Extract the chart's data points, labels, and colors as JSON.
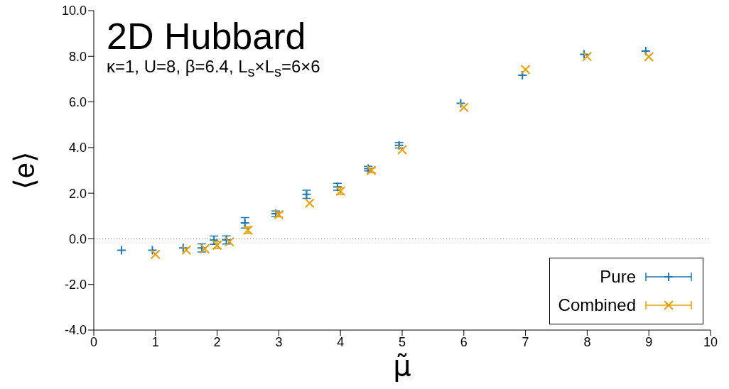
{
  "chart_data": {
    "type": "scatter",
    "title": "2D Hubbard",
    "subtitle": "κ=1, U=8, β=6.4, L$_{s}$×L$_{s}$=6×6",
    "xlabel": "μ̃",
    "ylabel": "⟨e⟩",
    "series": [
      {
        "name": "Pure",
        "color": "#1f77b4",
        "marker": "plus",
        "x": [
          0.45,
          0.95,
          1.45,
          1.75,
          1.95,
          2.15,
          2.45,
          2.95,
          3.45,
          3.95,
          4.45,
          4.95,
          5.95,
          6.95,
          7.95,
          8.95
        ],
        "values": [
          -0.5,
          -0.5,
          -0.4,
          -0.4,
          -0.06,
          -0.05,
          0.7,
          1.1,
          1.95,
          2.28,
          3.08,
          4.1,
          5.94,
          7.17,
          8.09,
          8.23
        ],
        "errors": [
          null,
          null,
          null,
          0.18,
          0.18,
          0.18,
          0.23,
          0.12,
          0.18,
          0.15,
          0.1,
          0.12,
          null,
          null,
          null,
          null
        ]
      },
      {
        "name": "Combined",
        "color": "#e69f00",
        "marker": "cross",
        "x": [
          1,
          1.5,
          1.8,
          2,
          2.2,
          2.5,
          3,
          3.5,
          4,
          4.5,
          5,
          6,
          7,
          8,
          9
        ],
        "values": [
          -0.68,
          -0.49,
          -0.44,
          -0.28,
          -0.13,
          0.38,
          1.06,
          1.56,
          2.09,
          3.0,
          3.9,
          5.76,
          7.42,
          7.99,
          7.98
        ],
        "errors": [
          null,
          null,
          null,
          0.15,
          null,
          0.15,
          0.1,
          null,
          0.15,
          0.1,
          null,
          null,
          null,
          null,
          null
        ]
      }
    ],
    "xlim": [
      0,
      10
    ],
    "xticks": [
      0,
      1,
      2,
      3,
      4,
      5,
      6,
      7,
      8,
      9,
      10
    ],
    "ylim": [
      -4,
      10
    ],
    "yticks": [
      {
        "value": -4,
        "label": "-4.0"
      },
      {
        "value": -2,
        "label": "-2.0"
      },
      {
        "value": 0,
        "label": "0.0"
      },
      {
        "value": 2,
        "label": "2.0"
      },
      {
        "value": 4,
        "label": "4.0"
      },
      {
        "value": 6,
        "label": "6.0"
      },
      {
        "value": 8,
        "label": "8.0"
      },
      {
        "value": 10,
        "label": "10.0"
      }
    ],
    "ref_lines": [
      {
        "axis": "y",
        "value": 0,
        "color": "#555555",
        "line_style": "dotted"
      }
    ],
    "legend": "bottom right",
    "grid": false
  }
}
